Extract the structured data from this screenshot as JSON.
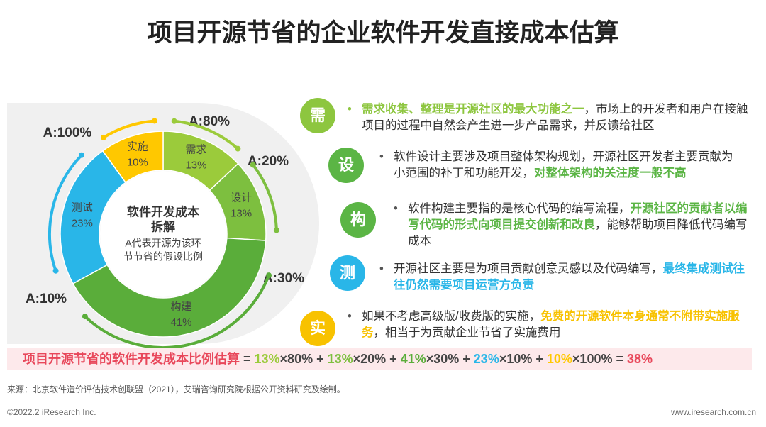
{
  "title": "项目开源节省的企业软件开发直接成本估算",
  "chart_data": {
    "type": "donut",
    "categories": [
      "需求",
      "设计",
      "构建",
      "测试",
      "实施"
    ],
    "values": [
      13,
      13,
      41,
      23,
      10
    ],
    "value_labels": [
      "13%",
      "13%",
      "41%",
      "23%",
      "10%"
    ],
    "colors": [
      "#9bcb3b",
      "#7dbf3f",
      "#5aad3a",
      "#29b6e8",
      "#ffc800"
    ],
    "center_title": [
      "软件开发成本",
      "拆解"
    ],
    "center_note": [
      "A代表开源为该环",
      "节节省的假设比例"
    ],
    "annotations": [
      "A:80%",
      "A:20%",
      "A:30%",
      "A:10%",
      "A:100%"
    ]
  },
  "items": [
    {
      "icon": "需",
      "color": "#8dc63f",
      "segments": [
        {
          "text": "需求收集、整理是开源社区的最大功能之一",
          "color": "#8dc63f"
        },
        {
          "text": "，市场上的开发者和用户在接触项目的过程中自然会产生进一步产品需求，并反馈给社区"
        }
      ]
    },
    {
      "icon": "设",
      "color": "#5bb545",
      "segments": [
        {
          "text": "软件设计主要涉及项目整体架构规划，开源社区开发者主要贡献为小范围的补丁和功能开发，"
        },
        {
          "text": "对整体架构的关注度一般不高",
          "color": "#5bb545"
        }
      ]
    },
    {
      "icon": "构",
      "color": "#5bb545",
      "segments": [
        {
          "text": "软件构建主要指的是核心代码的编写流程，"
        },
        {
          "text": "开源社区的贡献者以编写代码的形式向项目提交创新和改良",
          "color": "#5bb545"
        },
        {
          "text": "，能够帮助项目降低代码编写成本"
        }
      ]
    },
    {
      "icon": "测",
      "color": "#29b6e8",
      "segments": [
        {
          "text": "开源社区主要是为项目贡献创意灵感以及代码编写，"
        },
        {
          "text": "最终集成测试往往仍然需要项目运营方负责",
          "color": "#29b6e8"
        }
      ]
    },
    {
      "icon": "实",
      "color": "#f8c200",
      "segments": [
        {
          "text": "如果不考虑高级版/收费版的实施，"
        },
        {
          "text": "免费的开源软件本身通常不附带实施服务",
          "color": "#f8c200"
        },
        {
          "text": "，相当于为贡献企业节省了实施费用"
        }
      ]
    }
  ],
  "formula": [
    {
      "text": "项目开源节省的软件开发成本比例估算",
      "color": "#e8475a"
    },
    {
      "text": " = "
    },
    {
      "text": "13%",
      "color": "#9bcb3b"
    },
    {
      "text": "×80% + "
    },
    {
      "text": "13%",
      "color": "#7dbf3f"
    },
    {
      "text": "×20% + "
    },
    {
      "text": "41%",
      "color": "#5aad3a"
    },
    {
      "text": "×30% + "
    },
    {
      "text": "23%",
      "color": "#29b6e8"
    },
    {
      "text": "×10% + "
    },
    {
      "text": "10%",
      "color": "#ffc800"
    },
    {
      "text": "×100% = "
    },
    {
      "text": "38%",
      "color": "#e8475a"
    }
  ],
  "source": "来源：北京软件造价评估技术创联盟（2021），艾瑞咨询研究院根据公开资料研究及绘制。",
  "copyright": "©2022.2 iResearch Inc.",
  "website": "www.iresearch.com.cn"
}
